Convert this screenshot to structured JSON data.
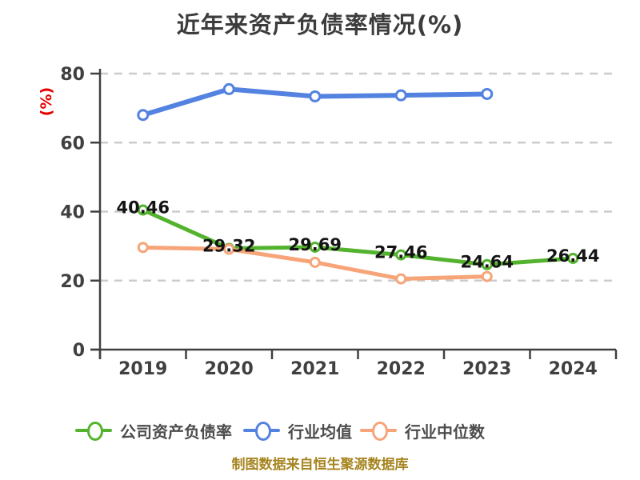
{
  "title": "近年来资产负债率情况(%)",
  "y_unit_label": "(%)",
  "footer": "制图数据来自恒生聚源数据库",
  "colors": {
    "company_series": "#54b32e",
    "industry_mean_series": "#5382e0",
    "industry_median_series": "#f6a478",
    "axis": "#404040",
    "grid": "#cccccc",
    "title_text": "#3c3c3c",
    "y_unit_text": "#e60000",
    "point_label_text": "#141414",
    "footer_text": "#a6841f",
    "legend_text": "#4d4d4d"
  },
  "chart_data": {
    "type": "line",
    "title": "近年来资产负债率情况(%)",
    "ylabel": "(%)",
    "categories": [
      "2019",
      "2020",
      "2021",
      "2022",
      "2023",
      "2024"
    ],
    "ylim": [
      0,
      80
    ],
    "yticks": [
      0,
      20,
      40,
      60,
      80
    ],
    "grid": "horizontal-dashed",
    "legend_position": "bottom",
    "series": [
      {
        "name": "公司资产负债率",
        "color": "#54b32e",
        "values": [
          40.46,
          29.32,
          29.69,
          27.46,
          24.64,
          26.44
        ],
        "labeled": true,
        "line_width": 5,
        "marker_radius": 5.5
      },
      {
        "name": "行业均值",
        "color": "#5382e0",
        "values": [
          68.0,
          75.5,
          73.4,
          73.7,
          74.1
        ],
        "labeled": false,
        "line_width": 6,
        "marker_radius": 6
      },
      {
        "name": "行业中位数",
        "color": "#f6a478",
        "values": [
          29.6,
          29.1,
          25.3,
          20.5,
          21.2
        ],
        "labeled": false,
        "line_width": 5,
        "marker_radius": 5.5
      }
    ]
  }
}
